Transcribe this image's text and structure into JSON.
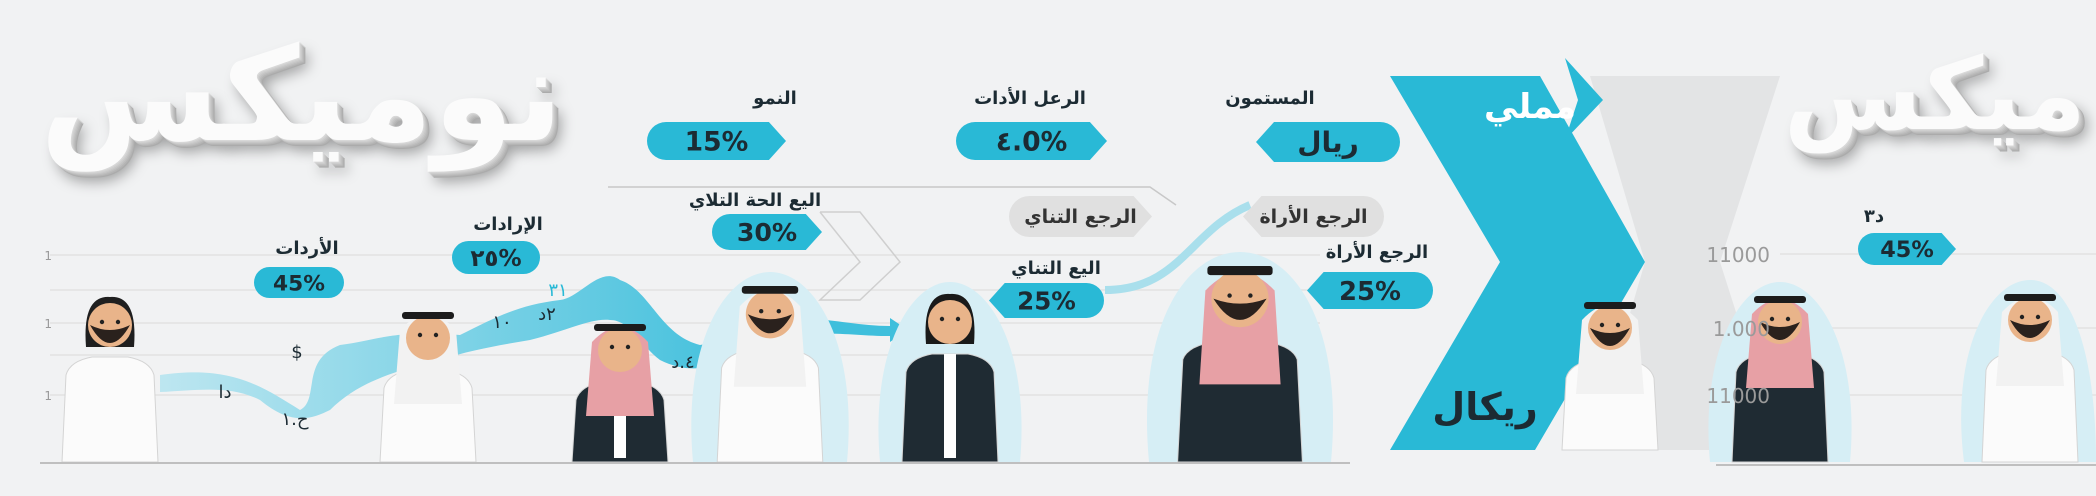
{
  "titles": {
    "left": "نوميكس",
    "right": "ميكس"
  },
  "banner": {
    "top_word": "مملي",
    "bottom_word": "ريكال"
  },
  "pills": [
    {
      "label": "النمو",
      "value": "15%"
    },
    {
      "label": "الرعل الأدات",
      "value": "٤.0%"
    },
    {
      "label": "المستمون",
      "value": "ريال"
    },
    {
      "label": "اليع الحة التلاي",
      "value": "30%"
    },
    {
      "label": "الإرادات",
      "value": "٢٥%"
    },
    {
      "label": "الأردات",
      "value": "45%"
    },
    {
      "label": "اليع التناي",
      "value": "25%"
    },
    {
      "label": "الرجع الأراة",
      "value": "25%"
    },
    {
      "label": "د٣",
      "value": "45%"
    }
  ],
  "gray_pills": [
    "الرجع التناي",
    "الرجع الأراة"
  ],
  "wave_labels": [
    "دا",
    "$",
    "ح.١",
    "١٠",
    "٢د",
    "٣١",
    "٤.د"
  ],
  "left_axis_ticks": [
    "1",
    "1",
    "1"
  ],
  "right_axis_ticks": [
    "11000",
    "1.000",
    "11000"
  ],
  "colors": {
    "accent": "#29b9d6",
    "accent_light": "#a9dfec",
    "dark_text": "#1c2b33",
    "gray_pill": "#e0e0e0",
    "background": "#f1f2f3"
  }
}
